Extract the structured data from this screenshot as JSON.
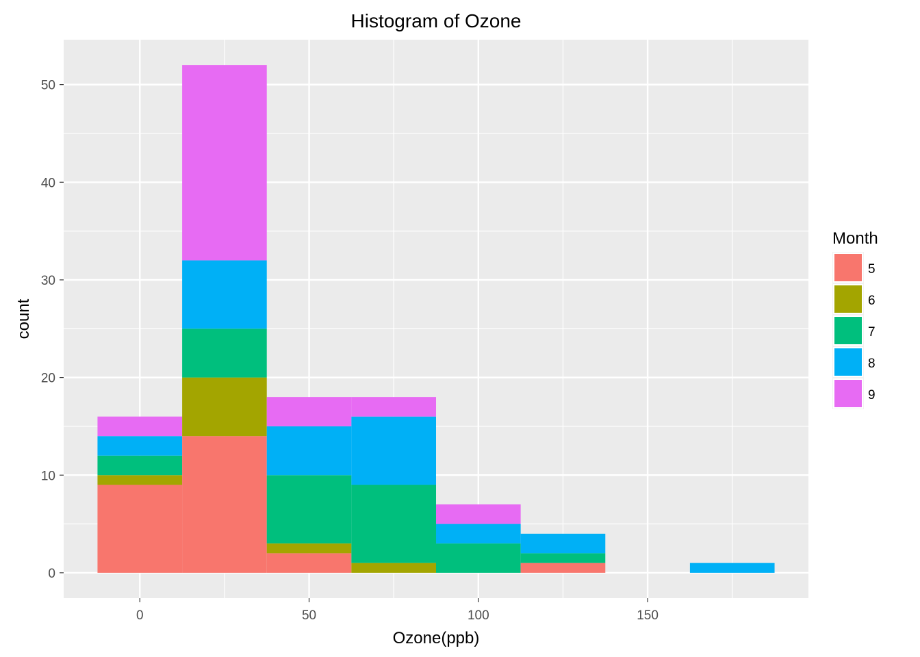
{
  "chart_data": {
    "type": "bar",
    "stacked": true,
    "title": "Histogram of Ozone",
    "xlabel": "Ozone(ppb)",
    "ylabel": "count",
    "bin_width": 25,
    "bin_starts": [
      -12.5,
      12.5,
      37.5,
      62.5,
      87.5,
      112.5,
      137.5,
      162.5
    ],
    "series": [
      {
        "name": "5",
        "color": "#F8766D",
        "values": [
          9,
          14,
          2,
          0,
          0,
          1,
          0,
          0
        ]
      },
      {
        "name": "6",
        "color": "#A3A500",
        "values": [
          1,
          6,
          1,
          1,
          0,
          0,
          0,
          0
        ]
      },
      {
        "name": "7",
        "color": "#00BF7D",
        "values": [
          2,
          5,
          7,
          8,
          3,
          1,
          0,
          0
        ]
      },
      {
        "name": "8",
        "color": "#00B0F6",
        "values": [
          2,
          7,
          5,
          7,
          2,
          2,
          0,
          1
        ]
      },
      {
        "name": "9",
        "color": "#E76BF3",
        "values": [
          2,
          20,
          3,
          2,
          2,
          0,
          0,
          0
        ]
      }
    ],
    "xlim": [
      -22.5,
      197.5
    ],
    "ylim": [
      -2.6,
      54.6
    ],
    "x_ticks": [
      0,
      50,
      100,
      150
    ],
    "x_tick_labels": [
      "0",
      "50",
      "100",
      "150"
    ],
    "y_ticks": [
      0,
      10,
      20,
      30,
      40,
      50
    ],
    "y_tick_labels": [
      "0",
      "10",
      "20",
      "30",
      "40",
      "50"
    ],
    "grid": true,
    "panel_background": "#EBEBEB",
    "legend": {
      "title": "Month",
      "position": "right"
    }
  }
}
